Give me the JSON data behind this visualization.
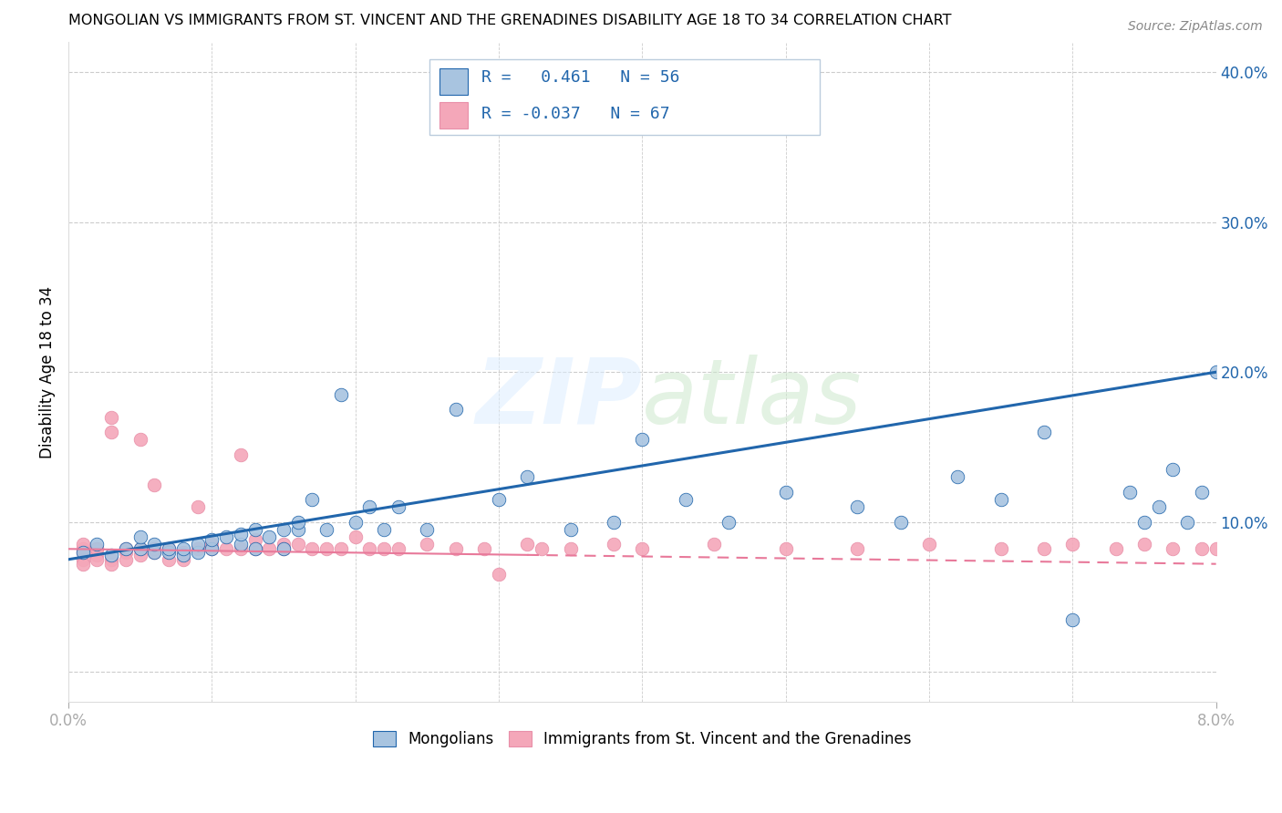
{
  "title": "MONGOLIAN VS IMMIGRANTS FROM ST. VINCENT AND THE GRENADINES DISABILITY AGE 18 TO 34 CORRELATION CHART",
  "source": "Source: ZipAtlas.com",
  "ylabel": "Disability Age 18 to 34",
  "xlim": [
    0.0,
    0.08
  ],
  "ylim": [
    -0.02,
    0.42
  ],
  "yticks": [
    0.0,
    0.1,
    0.2,
    0.3,
    0.4
  ],
  "ytick_labels": [
    "",
    "10.0%",
    "20.0%",
    "30.0%",
    "40.0%"
  ],
  "blue_R": 0.461,
  "blue_N": 56,
  "pink_R": -0.037,
  "pink_N": 67,
  "blue_color": "#a8c4e0",
  "pink_color": "#f4a7b9",
  "blue_line_color": "#2166ac",
  "pink_line_color": "#e8799a",
  "legend_label_blue": "Mongolians",
  "legend_label_pink": "Immigrants from St. Vincent and the Grenadines",
  "blue_line_x0": 0.0,
  "blue_line_y0": 0.075,
  "blue_line_x1": 0.08,
  "blue_line_y1": 0.2,
  "pink_line_x0": 0.0,
  "pink_line_y0": 0.082,
  "pink_line_x1": 0.08,
  "pink_line_y1": 0.072,
  "blue_scatter_x": [
    0.001,
    0.002,
    0.003,
    0.004,
    0.005,
    0.005,
    0.006,
    0.006,
    0.007,
    0.007,
    0.008,
    0.008,
    0.009,
    0.009,
    0.01,
    0.01,
    0.011,
    0.012,
    0.012,
    0.013,
    0.013,
    0.014,
    0.015,
    0.015,
    0.016,
    0.016,
    0.017,
    0.018,
    0.019,
    0.02,
    0.021,
    0.022,
    0.023,
    0.025,
    0.027,
    0.03,
    0.032,
    0.035,
    0.038,
    0.04,
    0.043,
    0.046,
    0.05,
    0.055,
    0.058,
    0.062,
    0.065,
    0.068,
    0.07,
    0.074,
    0.075,
    0.076,
    0.077,
    0.078,
    0.079,
    0.08
  ],
  "blue_scatter_y": [
    0.08,
    0.085,
    0.078,
    0.082,
    0.082,
    0.09,
    0.08,
    0.085,
    0.08,
    0.082,
    0.078,
    0.082,
    0.08,
    0.085,
    0.082,
    0.088,
    0.09,
    0.085,
    0.092,
    0.082,
    0.095,
    0.09,
    0.082,
    0.095,
    0.095,
    0.1,
    0.115,
    0.095,
    0.185,
    0.1,
    0.11,
    0.095,
    0.11,
    0.095,
    0.175,
    0.115,
    0.13,
    0.095,
    0.1,
    0.155,
    0.115,
    0.1,
    0.12,
    0.11,
    0.1,
    0.13,
    0.115,
    0.16,
    0.035,
    0.12,
    0.1,
    0.11,
    0.135,
    0.1,
    0.12,
    0.2
  ],
  "pink_scatter_x": [
    0.001,
    0.001,
    0.001,
    0.001,
    0.001,
    0.002,
    0.002,
    0.002,
    0.002,
    0.003,
    0.003,
    0.003,
    0.003,
    0.004,
    0.004,
    0.004,
    0.005,
    0.005,
    0.005,
    0.006,
    0.006,
    0.006,
    0.007,
    0.007,
    0.008,
    0.008,
    0.009,
    0.009,
    0.01,
    0.01,
    0.011,
    0.012,
    0.012,
    0.013,
    0.013,
    0.014,
    0.015,
    0.015,
    0.016,
    0.017,
    0.018,
    0.019,
    0.02,
    0.021,
    0.022,
    0.023,
    0.025,
    0.027,
    0.029,
    0.03,
    0.032,
    0.033,
    0.035,
    0.038,
    0.04,
    0.045,
    0.05,
    0.055,
    0.06,
    0.065,
    0.068,
    0.07,
    0.073,
    0.075,
    0.077,
    0.079,
    0.08
  ],
  "pink_scatter_y": [
    0.075,
    0.08,
    0.082,
    0.085,
    0.072,
    0.082,
    0.078,
    0.082,
    0.075,
    0.16,
    0.075,
    0.17,
    0.072,
    0.08,
    0.082,
    0.075,
    0.082,
    0.078,
    0.155,
    0.08,
    0.082,
    0.125,
    0.075,
    0.082,
    0.08,
    0.075,
    0.082,
    0.11,
    0.082,
    0.085,
    0.082,
    0.082,
    0.145,
    0.082,
    0.088,
    0.082,
    0.085,
    0.082,
    0.085,
    0.082,
    0.082,
    0.082,
    0.09,
    0.082,
    0.082,
    0.082,
    0.085,
    0.082,
    0.082,
    0.065,
    0.085,
    0.082,
    0.082,
    0.085,
    0.082,
    0.085,
    0.082,
    0.082,
    0.085,
    0.082,
    0.082,
    0.085,
    0.082,
    0.085,
    0.082,
    0.082,
    0.082
  ]
}
